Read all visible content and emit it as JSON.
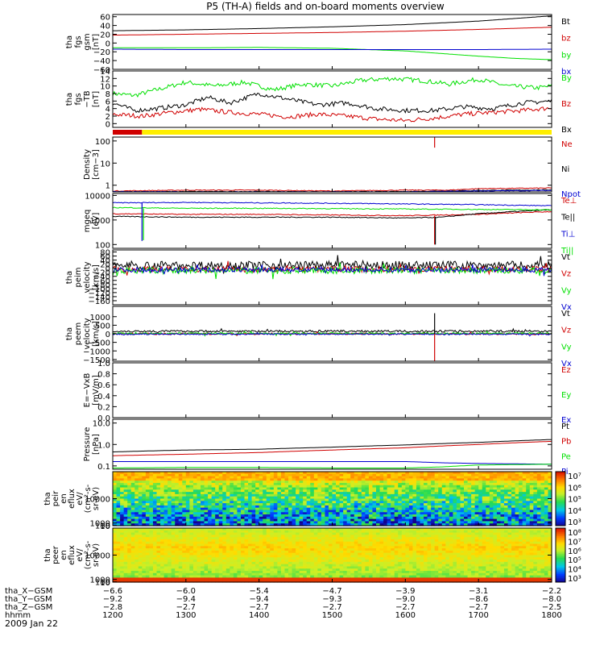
{
  "title": "P5 (TH-A) fields and on-board moments overview",
  "date_label": "2009 Jan 22",
  "colorbar_fill": {
    "k": "#000000",
    "r": "#d00000",
    "g": "#00e000",
    "b": "#0000d0",
    "y": "#ffee00"
  },
  "chart_data": [
    {
      "type": "line",
      "panel": "fgs-gsm",
      "ylabel": [
        "tha",
        "fgs",
        "gsm",
        "[nT]"
      ],
      "ylim": [
        -60,
        65
      ],
      "yticks": [
        "60",
        "40",
        "20",
        "0",
        "−20",
        "−40",
        "−60"
      ],
      "ytick_values": [
        60,
        40,
        20,
        0,
        -20,
        -40,
        -60
      ],
      "legend": [
        [
          "Bt",
          "k"
        ],
        [
          "bz",
          "r"
        ],
        [
          "by",
          "g"
        ],
        [
          "bx",
          "b"
        ]
      ],
      "series": [
        {
          "color": "k",
          "x": [
            1200,
            1300,
            1400,
            1500,
            1600,
            1650,
            1700,
            1750,
            1800
          ],
          "values": [
            28,
            30,
            33,
            37,
            42,
            46,
            50,
            56,
            62
          ]
        },
        {
          "color": "r",
          "x": [
            1200,
            1300,
            1400,
            1500,
            1600,
            1700,
            1800
          ],
          "values": [
            18,
            20,
            22,
            24,
            27,
            31,
            36
          ]
        },
        {
          "color": "g",
          "x": [
            1200,
            1300,
            1400,
            1500,
            1600,
            1650,
            1700,
            1750,
            1800
          ],
          "values": [
            -11,
            -11,
            -10,
            -12,
            -18,
            -24,
            -30,
            -35,
            -38
          ]
        },
        {
          "color": "b",
          "x": [
            1200,
            1300,
            1400,
            1500,
            1600,
            1700,
            1800
          ],
          "values": [
            -14,
            -15,
            -15,
            -15,
            -15,
            -15,
            -14
          ]
        }
      ]
    },
    {
      "type": "line",
      "panel": "fgs-tdb",
      "ylabel": [
        "tha",
        "fgs",
        "−TB",
        "[nT]"
      ],
      "ylim": [
        -1,
        14
      ],
      "yticks": [
        "14",
        "12",
        "10",
        "8",
        "6",
        "4",
        "2",
        "0"
      ],
      "ytick_values": [
        14,
        12,
        10,
        8,
        6,
        4,
        2,
        0
      ],
      "legend": [
        [
          "By",
          "g"
        ],
        [
          "Bz",
          "r"
        ],
        [
          "Bx",
          "k"
        ]
      ],
      "series": [
        {
          "color": "g",
          "x": [
            1200,
            1230,
            1260,
            1300,
            1340,
            1380,
            1420,
            1460,
            1500,
            1540,
            1580,
            1620,
            1660,
            1700,
            1740,
            1780,
            1800
          ],
          "values": [
            8,
            7.5,
            9,
            11,
            10,
            11,
            9,
            10.5,
            10,
            11.5,
            12,
            11.5,
            10.5,
            11.8,
            10,
            9.5,
            10
          ]
        },
        {
          "color": "r",
          "x": [
            1200,
            1240,
            1280,
            1320,
            1360,
            1400,
            1440,
            1480,
            1520,
            1560,
            1600,
            1640,
            1680,
            1720,
            1760,
            1800
          ],
          "values": [
            2.5,
            2,
            3,
            3.8,
            3,
            2.5,
            1.8,
            2.5,
            2,
            1.2,
            0.8,
            1.5,
            2.5,
            3,
            3.5,
            4.2
          ]
        },
        {
          "color": "k",
          "x": [
            1200,
            1230,
            1260,
            1300,
            1330,
            1360,
            1400,
            1440,
            1480,
            1520,
            1560,
            1600,
            1640,
            1680,
            1720,
            1760,
            1800
          ],
          "values": [
            5.5,
            3.5,
            4,
            5,
            7,
            5.5,
            8,
            6.5,
            5,
            5.5,
            4,
            3.5,
            3.5,
            4.5,
            4,
            5.5,
            6
          ]
        }
      ]
    },
    {
      "type": "bar",
      "panel": "mode-bar",
      "segments": [
        {
          "from": 1200,
          "to": 1240,
          "color": "r"
        },
        {
          "from": 1240,
          "to": 1800,
          "color": "y"
        }
      ]
    },
    {
      "type": "line",
      "panel": "density",
      "scale": "log",
      "ylabel": [
        "Density",
        "[cm−3]"
      ],
      "ylim": [
        0.5,
        150
      ],
      "yticks": [
        "100",
        "10",
        "1"
      ],
      "ytick_values": [
        100,
        10,
        1
      ],
      "legend": [
        [
          "Ne",
          "r"
        ],
        [
          "Ni",
          "k"
        ],
        [
          "Npot",
          "b"
        ]
      ],
      "series": [
        {
          "color": "r",
          "x": [
            1200,
            1300,
            1400,
            1500,
            1600,
            1640,
            1660,
            1700,
            1800
          ],
          "values": [
            0.55,
            0.6,
            0.6,
            0.55,
            0.6,
            0.6,
            0.6,
            0.7,
            0.75
          ]
        },
        {
          "color": "k",
          "x": [
            1200,
            1300,
            1400,
            1500,
            1600,
            1700,
            1800
          ],
          "values": [
            0.5,
            0.52,
            0.52,
            0.5,
            0.52,
            0.58,
            0.62
          ]
        },
        {
          "color": "b",
          "x": [
            1200,
            1300,
            1400,
            1500,
            1600,
            1700,
            1800
          ],
          "values": [
            0.52,
            0.5,
            0.5,
            0.5,
            0.5,
            0.55,
            0.58
          ]
        }
      ],
      "spikes": [
        {
          "x": 1640,
          "from": 50,
          "to": 150,
          "color": "r"
        }
      ]
    },
    {
      "type": "line",
      "panel": "temperature",
      "scale": "log",
      "ylabel": [
        "mgeq",
        "[eV]"
      ],
      "ylim": [
        70,
        12000
      ],
      "yticks": [
        "10000",
        "1000",
        "100"
      ],
      "ytick_values": [
        10000,
        1000,
        100
      ],
      "legend": [
        [
          "Te⊥",
          "r"
        ],
        [
          "Te||",
          "k"
        ],
        [
          "Ti⊥",
          "b"
        ],
        [
          "Ti||",
          "g"
        ]
      ],
      "series": [
        {
          "color": "r",
          "x": [
            1200,
            1300,
            1400,
            1500,
            1600,
            1700,
            1800
          ],
          "values": [
            1800,
            1700,
            1700,
            1600,
            1500,
            1700,
            2200
          ]
        },
        {
          "color": "k",
          "x": [
            1200,
            1300,
            1400,
            1500,
            1600,
            1650,
            1700,
            1800
          ],
          "values": [
            1400,
            1300,
            1300,
            1300,
            1200,
            1300,
            1800,
            2600
          ]
        },
        {
          "color": "b",
          "x": [
            1200,
            1300,
            1400,
            1500,
            1600,
            1700,
            1800
          ],
          "values": [
            5000,
            5200,
            5000,
            4800,
            4500,
            4200,
            3800
          ]
        },
        {
          "color": "g",
          "x": [
            1200,
            1300,
            1400,
            1500,
            1600,
            1700,
            1800
          ],
          "values": [
            3200,
            3000,
            3000,
            2900,
            2800,
            2700,
            2600
          ]
        }
      ],
      "spikes": [
        {
          "x": 1240,
          "from": 140,
          "to": 5000,
          "color": "b"
        },
        {
          "x": 1242,
          "from": 150,
          "to": 3000,
          "color": "g"
        },
        {
          "x": 1640,
          "from": 100,
          "to": 1500,
          "color": "r"
        },
        {
          "x": 1641,
          "from": 100,
          "to": 1300,
          "color": "k"
        }
      ]
    },
    {
      "type": "line",
      "panel": "peim-velocity",
      "ylabel": [
        "tha",
        "peim",
        "velocity",
        "[km/s]"
      ],
      "ylim": [
        -180,
        90
      ],
      "yticks": [
        "80",
        "60",
        "40",
        "20",
        "0",
        "−20",
        "−40",
        "−60",
        "−80",
        "−100",
        "−120",
        "−140",
        "−160"
      ],
      "ytick_values": [
        80,
        60,
        40,
        20,
        0,
        -20,
        -40,
        -60,
        -80,
        -100,
        -120,
        -140,
        -160
      ],
      "legend": [
        [
          "Vt",
          "k"
        ],
        [
          "Vz",
          "r"
        ],
        [
          "Vy",
          "g"
        ],
        [
          "Vx",
          "b"
        ]
      ],
      "series": [
        {
          "color": "k",
          "x": [
            1200,
            1800
          ],
          "values": [
            15,
            15
          ],
          "noise": 20
        },
        {
          "color": "r",
          "x": [
            1200,
            1800
          ],
          "values": [
            -5,
            -5
          ],
          "noise": 14
        },
        {
          "color": "g",
          "x": [
            1200,
            1800
          ],
          "values": [
            -12,
            -12
          ],
          "noise": 16
        },
        {
          "color": "b",
          "x": [
            1200,
            1800
          ],
          "values": [
            -8,
            -8
          ],
          "noise": 12
        }
      ]
    },
    {
      "type": "line",
      "panel": "peem-velocity",
      "ylabel": [
        "tha",
        "peem",
        "velocity",
        "[km/s]"
      ],
      "ylim": [
        -1600,
        1600
      ],
      "yticks": [
        "1000",
        "500",
        "0",
        "−500",
        "−1000",
        "−1500"
      ],
      "ytick_values": [
        1000,
        500,
        0,
        -500,
        -1000,
        -1500
      ],
      "legend": [
        [
          "Vt",
          "k"
        ],
        [
          "Vz",
          "r"
        ],
        [
          "Vy",
          "g"
        ],
        [
          "Vx",
          "b"
        ]
      ],
      "series": [
        {
          "color": "k",
          "x": [
            1200,
            1800
          ],
          "values": [
            150,
            150
          ],
          "noise": 60
        },
        {
          "color": "r",
          "x": [
            1200,
            1800
          ],
          "values": [
            0,
            0
          ],
          "noise": 50
        },
        {
          "color": "g",
          "x": [
            1200,
            1800
          ],
          "values": [
            20,
            20
          ],
          "noise": 50
        },
        {
          "color": "b",
          "x": [
            1200,
            1800
          ],
          "values": [
            -20,
            -20
          ],
          "noise": 40
        }
      ],
      "spikes": [
        {
          "x": 1640,
          "from": 0,
          "to": 1200,
          "color": "k"
        },
        {
          "x": 1640,
          "from": -1600,
          "to": 0,
          "color": "r"
        }
      ]
    },
    {
      "type": "line",
      "panel": "e-field",
      "ylabel": [
        "E=−VxB",
        "[mV/m]"
      ],
      "ylim": [
        0,
        1
      ],
      "yticks": [
        "1.0",
        "0.8",
        "0.6",
        "0.4",
        "0.2",
        "0.0"
      ],
      "ytick_values": [
        1,
        0.8,
        0.6,
        0.4,
        0.2,
        0
      ],
      "legend": [
        [
          "Ez",
          "r"
        ],
        [
          "Ey",
          "g"
        ],
        [
          "Ex",
          "b"
        ]
      ],
      "series": []
    },
    {
      "type": "line",
      "panel": "pressure",
      "scale": "log",
      "ylabel": [
        "Pressure",
        "[nPa]"
      ],
      "ylim": [
        0.07,
        15
      ],
      "yticks": [
        "10.0",
        "1.0",
        "0.1"
      ],
      "ytick_values": [
        10,
        1,
        0.1
      ],
      "legend": [
        [
          "Pt",
          "k"
        ],
        [
          "Pb",
          "r"
        ],
        [
          "Pe",
          "g"
        ],
        [
          "Pi",
          "b"
        ]
      ],
      "series": [
        {
          "color": "k",
          "x": [
            1200,
            1300,
            1400,
            1500,
            1600,
            1700,
            1800
          ],
          "values": [
            0.45,
            0.55,
            0.6,
            0.75,
            0.95,
            1.25,
            1.7
          ]
        },
        {
          "color": "r",
          "x": [
            1200,
            1300,
            1400,
            1500,
            1600,
            1700,
            1800
          ],
          "values": [
            0.3,
            0.35,
            0.42,
            0.55,
            0.7,
            1.0,
            1.4
          ]
        },
        {
          "color": "b",
          "x": [
            1200,
            1300,
            1400,
            1500,
            1600,
            1650,
            1700,
            1800
          ],
          "values": [
            0.16,
            0.16,
            0.16,
            0.16,
            0.16,
            0.14,
            0.13,
            0.12
          ]
        },
        {
          "color": "g",
          "x": [
            1200,
            1300,
            1400,
            1500,
            1600,
            1650,
            1700,
            1800
          ],
          "values": [
            0.08,
            0.085,
            0.085,
            0.08,
            0.08,
            0.09,
            0.11,
            0.12
          ]
        }
      ]
    },
    {
      "type": "heatmap",
      "panel": "peir-en-eflux",
      "ylabel": [
        "tha",
        "peir",
        "en",
        "eflux",
        "eV/",
        "(cm²-s-",
        "sr-eV)"
      ],
      "ylim": [
        8,
        20000
      ],
      "yticks": [
        "10000",
        "1000",
        "100",
        "10"
      ],
      "ytick_values": [
        10000,
        1000,
        100,
        10
      ],
      "colorbar_ticks": [
        "10⁷",
        "10⁶",
        "10⁵",
        "10⁴",
        "10³"
      ]
    },
    {
      "type": "heatmap",
      "panel": "peer-en-eflux",
      "ylabel": [
        "tha",
        "peer",
        "en",
        "eflux",
        "eV/",
        "(cm²-s-",
        "sr-eV)"
      ],
      "ylim": [
        8,
        20000
      ],
      "yticks": [
        "10000",
        "1000",
        "100",
        "10"
      ],
      "ytick_values": [
        10000,
        1000,
        100,
        10
      ],
      "colorbar_ticks": [
        "10⁸",
        "10⁷",
        "10⁶",
        "10⁵",
        "10⁴",
        "10³"
      ]
    }
  ],
  "x_axis": {
    "rows": [
      {
        "label": "tha_X−GSM",
        "values": [
          "−6.6",
          "−6.0",
          "−5.4",
          "−4.7",
          "−3.9",
          "−3.1",
          "−2.2"
        ]
      },
      {
        "label": "tha_Y−GSM",
        "values": [
          "−9.2",
          "−9.4",
          "−9.4",
          "−9.3",
          "−9.0",
          "−8.6",
          "−8.0"
        ]
      },
      {
        "label": "tha_Z−GSM",
        "values": [
          "−2.8",
          "−2.7",
          "−2.7",
          "−2.7",
          "−2.7",
          "−2.7",
          "−2.5"
        ]
      },
      {
        "label": "hhmm",
        "values": [
          "1200",
          "1300",
          "1400",
          "1500",
          "1600",
          "1700",
          "1800"
        ]
      }
    ]
  }
}
